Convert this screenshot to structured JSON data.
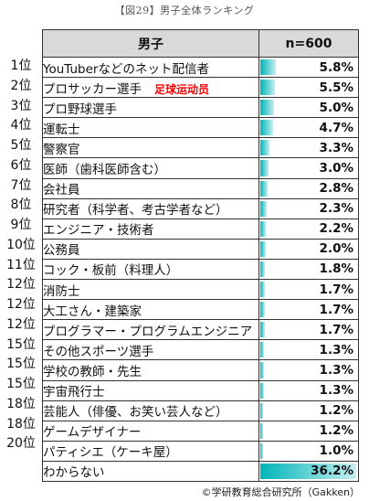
{
  "header": {
    "title": "【図29】男子全体ランキング",
    "column_label": "男子",
    "column_n": "n=600"
  },
  "rows": [
    {
      "rank": "1位",
      "label": "YouTuberなどのネット配信者",
      "value": 5.8,
      "display": "5.8%"
    },
    {
      "rank": "2位",
      "label": "プロサッカー選手",
      "value": 5.5,
      "display": "5.5%",
      "annotation": "足球运动员"
    },
    {
      "rank": "3位",
      "label": "プロ野球選手",
      "value": 5.0,
      "display": "5.0%"
    },
    {
      "rank": "4位",
      "label": "運転士",
      "value": 4.7,
      "display": "4.7%"
    },
    {
      "rank": "5位",
      "label": "警察官",
      "value": 3.3,
      "display": "3.3%"
    },
    {
      "rank": "6位",
      "label": "医師（歯科医師含む）",
      "value": 3.0,
      "display": "3.0%"
    },
    {
      "rank": "7位",
      "label": "会社員",
      "value": 2.8,
      "display": "2.8%"
    },
    {
      "rank": "8位",
      "label": "研究者（科学者、考古学者など）",
      "value": 2.3,
      "display": "2.3%"
    },
    {
      "rank": "9位",
      "label": "エンジニア・技術者",
      "value": 2.2,
      "display": "2.2%"
    },
    {
      "rank": "10位",
      "label": "公務員",
      "value": 2.0,
      "display": "2.0%"
    },
    {
      "rank": "11位",
      "label": "コック・板前（料理人）",
      "value": 1.8,
      "display": "1.8%"
    },
    {
      "rank": "12位",
      "label": "消防士",
      "value": 1.7,
      "display": "1.7%"
    },
    {
      "rank": "12位",
      "label": "大工さん・建築家",
      "value": 1.7,
      "display": "1.7%"
    },
    {
      "rank": "12位",
      "label": "プログラマー・プログラムエンジニア",
      "value": 1.7,
      "display": "1.7%"
    },
    {
      "rank": "15位",
      "label": "その他スポーツ選手",
      "value": 1.3,
      "display": "1.3%"
    },
    {
      "rank": "15位",
      "label": "学校の教師・先生",
      "value": 1.3,
      "display": "1.3%"
    },
    {
      "rank": "15位",
      "label": "宇宙飛行士",
      "value": 1.3,
      "display": "1.3%"
    },
    {
      "rank": "18位",
      "label": "芸能人（俳優、お笑い芸人など）",
      "value": 1.2,
      "display": "1.2%"
    },
    {
      "rank": "18位",
      "label": "ゲームデザイナー",
      "value": 1.2,
      "display": "1.2%"
    },
    {
      "rank": "20位",
      "label": "パティシエ（ケーキ屋）",
      "value": 1.0,
      "display": "1.0%"
    },
    {
      "rank": "",
      "label": "わからない",
      "value": 36.2,
      "display": "36.2%"
    }
  ],
  "credit": "©学研教育総合研究所（Gakken）",
  "colors": {
    "bar": "#00b5b8",
    "annotation": "#ff0000",
    "header_bg": "#d9d9d9"
  }
}
